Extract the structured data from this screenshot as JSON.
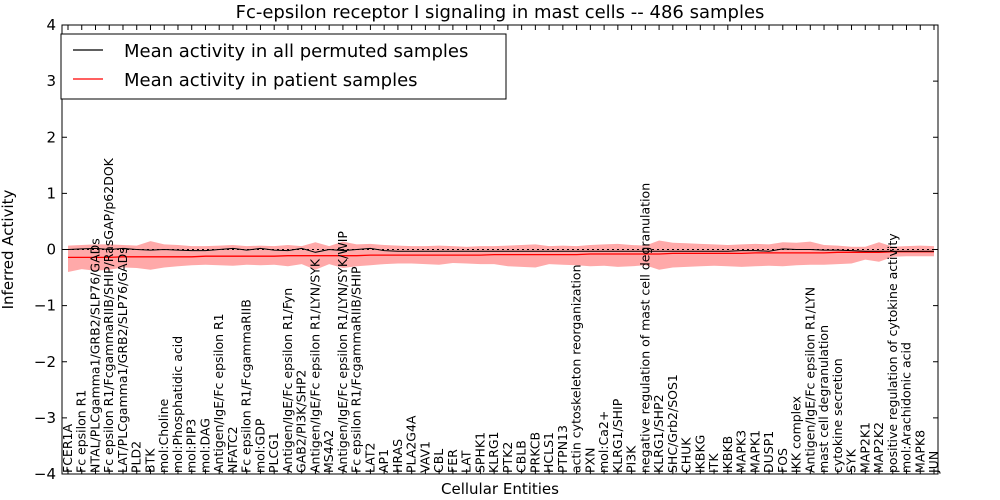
{
  "chart_data": {
    "type": "line",
    "title": "Fc-epsilon receptor I signaling in mast cells -- 486 samples",
    "xlabel": "Cellular Entities",
    "ylabel": "Inferred Activity",
    "ylim": [
      -4,
      4
    ],
    "yticks": [
      4,
      3,
      2,
      1,
      0,
      -1,
      -2,
      -3,
      -4
    ],
    "grid": false,
    "legend_position": "top-left",
    "colors": {
      "permuted": "#000000",
      "patient": "#ff0000",
      "band": "#ff6f6f"
    },
    "categories": [
      "FCER1A",
      "Fc epsilon R1",
      "NTAL/PLCgamma1/GRB2/SLP76/GADs",
      "Fc epsilon R1/FcgammaRIIB/SHIP/RasGAP/p62DOK",
      "LAT/PLCgamma1/GRB2/SLP76/GADs",
      "PLD2",
      "BTK",
      "mol:Choline",
      "mol:Phosphatidic acid",
      "mol:PIP3",
      "mol:DAG",
      "Antigen/IgE/Fc epsilon R1",
      "NFATC2",
      "Fc epsilon R1/FcgammaRIIB",
      "mol:GDP",
      "PLCG1",
      "Antigen/IgE/Fc epsilon R1/Fyn",
      "GAB2/PI3K/SHP2",
      "Antigen/IgE/Fc epsilon R1/LYN/SYK",
      "MS4A2",
      "Antigen/IgE/Fc epsilon R1/LYN/SYK/WIP",
      "Fc epsilon R1/FcgammaRIIB/SHIP",
      "LAT2",
      "AP1",
      "HRAS",
      "PLA2G4A",
      "VAV1",
      "CBL",
      "FER",
      "LAT",
      "SPHK1",
      "KLRG1",
      "PTK2",
      "CBLB",
      "PRKCB",
      "HCLS1",
      "PTPN13",
      "actin cytoskeleton reorganization",
      "PXN",
      "mol:Ca2+",
      "KLRG1/SHIP",
      "PI3K",
      "negative regulation of mast cell degranulation",
      "KLRG1/SHP2",
      "SHC/Grb2/SOS1",
      "CHUK",
      "IKBKG",
      "ITK",
      "IKBKB",
      "MAPK3",
      "MAPK1",
      "DUSP1",
      "FOS",
      "IKK complex",
      "Antigen/IgE/Fc epsilon R1/LYN",
      "mast cell degranulation",
      "cytokine secretion",
      "SYK",
      "MAP2K1",
      "MAP2K2",
      "positive regulation of cytokine activity",
      "mol:Arachidonic acid",
      "MAPK8",
      "JUN"
    ],
    "series": [
      {
        "name": "Mean activity in all permuted samples",
        "values": [
          0.0,
          0.01,
          0.02,
          0.0,
          0.02,
          0.0,
          -0.01,
          0.0,
          -0.01,
          -0.02,
          -0.02,
          0.0,
          0.02,
          -0.01,
          0.02,
          -0.01,
          -0.02,
          0.02,
          -0.05,
          0.0,
          -0.02,
          0.0,
          0.02,
          -0.02,
          -0.03,
          -0.03,
          -0.03,
          -0.03,
          -0.03,
          -0.03,
          -0.03,
          -0.03,
          -0.03,
          -0.03,
          -0.03,
          -0.03,
          -0.03,
          -0.03,
          -0.03,
          -0.03,
          -0.03,
          -0.03,
          -0.03,
          -0.03,
          -0.03,
          -0.03,
          -0.03,
          -0.03,
          -0.03,
          -0.02,
          -0.02,
          -0.03,
          0.01,
          0.0,
          0.0,
          -0.01,
          -0.01,
          -0.02,
          -0.03,
          -0.03,
          -0.03,
          -0.03,
          -0.03,
          -0.03
        ]
      },
      {
        "name": "Mean activity in patient samples",
        "values": [
          -0.14,
          -0.14,
          -0.14,
          -0.14,
          -0.13,
          -0.13,
          -0.13,
          -0.13,
          -0.13,
          -0.13,
          -0.12,
          -0.12,
          -0.12,
          -0.12,
          -0.12,
          -0.12,
          -0.11,
          -0.11,
          -0.11,
          -0.11,
          -0.11,
          -0.11,
          -0.1,
          -0.1,
          -0.1,
          -0.1,
          -0.1,
          -0.1,
          -0.1,
          -0.1,
          -0.1,
          -0.09,
          -0.09,
          -0.09,
          -0.09,
          -0.09,
          -0.09,
          -0.09,
          -0.08,
          -0.08,
          -0.08,
          -0.08,
          -0.08,
          -0.08,
          -0.07,
          -0.07,
          -0.07,
          -0.07,
          -0.07,
          -0.07,
          -0.06,
          -0.06,
          -0.06,
          -0.06,
          -0.06,
          -0.06,
          -0.05,
          -0.05,
          -0.05,
          -0.05,
          -0.04,
          -0.04,
          -0.04,
          -0.04
        ],
        "band_upper": [
          0.07,
          0.08,
          0.09,
          0.09,
          0.08,
          0.07,
          0.15,
          0.09,
          0.08,
          0.06,
          0.06,
          0.07,
          0.08,
          0.06,
          0.07,
          0.06,
          0.08,
          0.06,
          0.13,
          0.06,
          0.14,
          0.09,
          0.1,
          0.08,
          0.07,
          0.06,
          0.06,
          0.07,
          0.06,
          0.05,
          0.06,
          0.06,
          0.07,
          0.08,
          0.09,
          0.06,
          0.07,
          0.06,
          0.08,
          0.09,
          0.1,
          0.08,
          0.07,
          0.16,
          0.12,
          0.11,
          0.1,
          0.09,
          0.08,
          0.09,
          0.1,
          0.09,
          0.13,
          0.12,
          0.14,
          0.08,
          0.07,
          0.05,
          0.05,
          0.13,
          0.05,
          0.06,
          0.07,
          0.06
        ],
        "band_lower": [
          -0.4,
          -0.35,
          -0.38,
          -0.36,
          -0.32,
          -0.33,
          -0.36,
          -0.32,
          -0.3,
          -0.28,
          -0.27,
          -0.28,
          -0.29,
          -0.27,
          -0.28,
          -0.27,
          -0.3,
          -0.26,
          -0.36,
          -0.26,
          -0.33,
          -0.3,
          -0.28,
          -0.26,
          -0.25,
          -0.25,
          -0.26,
          -0.27,
          -0.24,
          -0.25,
          -0.26,
          -0.26,
          -0.3,
          -0.31,
          -0.32,
          -0.26,
          -0.27,
          -0.28,
          -0.3,
          -0.29,
          -0.31,
          -0.3,
          -0.28,
          -0.36,
          -0.32,
          -0.31,
          -0.3,
          -0.29,
          -0.3,
          -0.31,
          -0.3,
          -0.29,
          -0.3,
          -0.28,
          -0.27,
          -0.27,
          -0.26,
          -0.25,
          -0.18,
          -0.22,
          -0.13,
          -0.12,
          -0.12,
          -0.12
        ]
      }
    ]
  }
}
